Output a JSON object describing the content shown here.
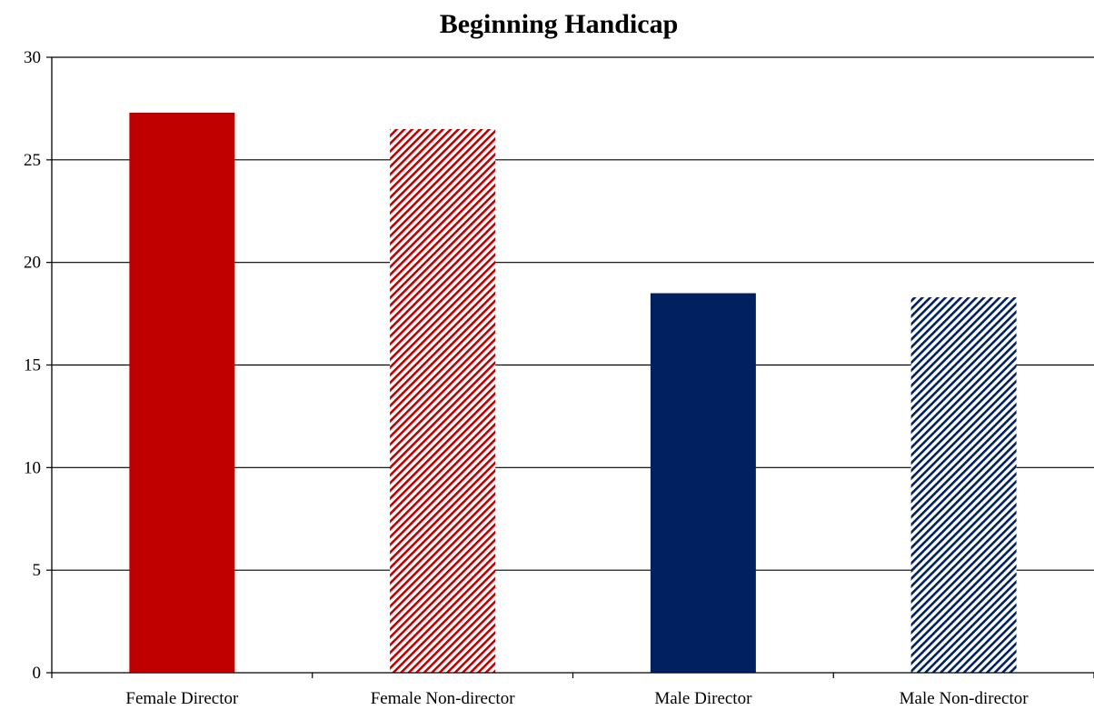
{
  "chart_data": {
    "type": "bar",
    "title": "Beginning Handicap",
    "xlabel": "",
    "ylabel": "",
    "categories": [
      "Female Director",
      "Female Non-director",
      "Male Director",
      "Male Non-director"
    ],
    "values": [
      27.3,
      26.5,
      18.5,
      18.3
    ],
    "ylim": [
      0,
      30
    ],
    "yticks": [
      0,
      5,
      10,
      15,
      20,
      25,
      30
    ],
    "ytick_labels": [
      "0",
      "5",
      "10",
      "15",
      "20",
      "25",
      "30"
    ],
    "grid": true,
    "legend": "none",
    "bar_styles": [
      {
        "color": "#C00000",
        "pattern": "solid"
      },
      {
        "color": "#C00000",
        "pattern": "diagonal-hatch"
      },
      {
        "color": "#002060",
        "pattern": "solid"
      },
      {
        "color": "#002060",
        "pattern": "diagonal-hatch"
      }
    ]
  }
}
